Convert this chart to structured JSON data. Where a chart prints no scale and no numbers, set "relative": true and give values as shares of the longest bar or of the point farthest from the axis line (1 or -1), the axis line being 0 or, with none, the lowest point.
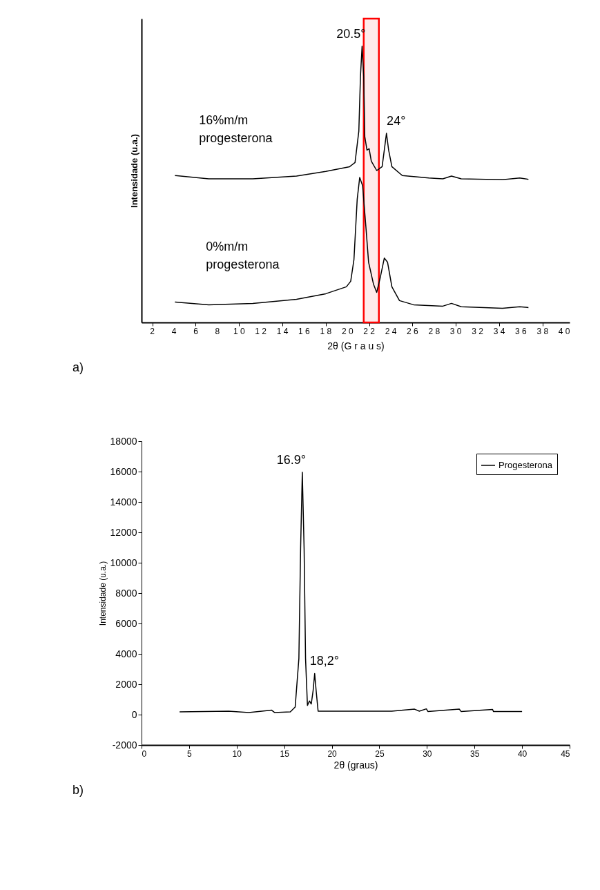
{
  "chart_data": [
    {
      "type": "line",
      "relative": true,
      "xlabel": "2θ (G r a u s)",
      "ylabel": "Intensidade (u.a.)",
      "xlim": [
        1,
        40.5
      ],
      "xticks": [
        2,
        4,
        6,
        8,
        {
          "value": 10,
          "label": "1 0"
        },
        {
          "value": 12,
          "label": "1 2"
        },
        {
          "value": 14,
          "label": "1 4"
        },
        {
          "value": 16,
          "label": "1 6"
        },
        {
          "value": 18,
          "label": "1 8"
        },
        {
          "value": 20,
          "label": "2 0"
        },
        {
          "value": 22,
          "label": "2 2"
        },
        {
          "value": 24,
          "label": "2 4"
        },
        {
          "value": 26,
          "label": "2 6"
        },
        {
          "value": 28,
          "label": "2 8"
        },
        {
          "value": 30,
          "label": "3 0"
        },
        {
          "value": 32,
          "label": "3 2"
        },
        {
          "value": 34,
          "label": "3 4"
        },
        {
          "value": 36,
          "label": "3 6"
        },
        {
          "value": 38,
          "label": "3 8"
        },
        {
          "value": 40,
          "label": "4 0"
        }
      ],
      "tick_labels": "x",
      "grid": false,
      "legend": false,
      "marker": "none",
      "line_style": "solid",
      "series": [
        {
          "name": "16%m/m progesterona",
          "color": "#000000",
          "x": [
            4.08,
            7.2,
            11.26,
            15.3,
            18.0,
            20.2,
            20.7,
            21.05,
            21.2,
            21.35,
            21.5,
            21.6,
            21.8,
            22.0,
            22.2,
            22.7,
            23.2,
            23.4,
            23.6,
            23.8,
            24.1,
            25.06,
            27.5,
            28.8,
            29.6,
            30.5,
            34.3,
            35.9,
            36.7
          ],
          "values": [
            0.532,
            0.52,
            0.52,
            0.53,
            0.547,
            0.564,
            0.579,
            0.693,
            0.891,
            1.0,
            0.891,
            0.673,
            0.624,
            0.629,
            0.584,
            0.55,
            0.564,
            0.624,
            0.685,
            0.624,
            0.564,
            0.532,
            0.523,
            0.52,
            0.53,
            0.52,
            0.517,
            0.523,
            0.518
          ]
        },
        {
          "name": "0%m/m progesterona",
          "color": "#000000",
          "x": [
            4.08,
            7.2,
            11.26,
            15.3,
            18.0,
            19.9,
            20.3,
            20.6,
            20.9,
            21.13,
            21.4,
            21.7,
            21.95,
            22.4,
            22.7,
            23.0,
            23.4,
            23.7,
            24.1,
            24.8,
            26.1,
            28.8,
            29.6,
            30.5,
            34.3,
            35.9,
            36.7
          ],
          "values": [
            0.074,
            0.064,
            0.069,
            0.084,
            0.104,
            0.129,
            0.149,
            0.228,
            0.446,
            0.525,
            0.495,
            0.347,
            0.218,
            0.139,
            0.109,
            0.158,
            0.233,
            0.218,
            0.129,
            0.079,
            0.064,
            0.059,
            0.069,
            0.057,
            0.051,
            0.057,
            0.054
          ]
        }
      ],
      "bands": [
        {
          "axis": "x",
          "from": 21.5,
          "to": 22.9,
          "color": "#ff0000"
        }
      ],
      "annotations": [
        {
          "text": "20.5°",
          "x": 21.35,
          "y": 1.0
        },
        {
          "text": "24°",
          "x": 23.6,
          "y": 0.685
        },
        "a)"
      ]
    },
    {
      "type": "line",
      "xlabel": "2θ (graus)",
      "ylabel": "Intensidade (u.a.)",
      "xlim": [
        0,
        45
      ],
      "xticks": [
        0,
        5,
        10,
        15,
        20,
        25,
        30,
        35,
        40,
        45
      ],
      "ylim": [
        -2000,
        18000
      ],
      "yticks": [
        -2000,
        0,
        2000,
        4000,
        6000,
        8000,
        10000,
        12000,
        14000,
        16000,
        18000
      ],
      "grid": false,
      "legend": "top right",
      "marker": "none",
      "line_style": "solid",
      "series": [
        {
          "name": "Progesterona",
          "color": "#000000",
          "x": [
            4.0,
            9.16,
            11.27,
            13.68,
            13.98,
            15.64,
            16.15,
            16.54,
            16.72,
            16.9,
            17.09,
            17.24,
            17.44,
            17.65,
            17.84,
            18.04,
            18.2,
            18.35,
            18.56,
            20.3,
            26.3,
            28.7,
            29.2,
            29.94,
            30.1,
            33.4,
            33.6,
            36.9,
            37.0,
            40.0
          ],
          "values": [
            180,
            230,
            140,
            290,
            140,
            180,
            500,
            3700,
            10900,
            15950,
            10900,
            3700,
            600,
            900,
            700,
            1600,
            2700,
            1600,
            230,
            230,
            230,
            360,
            230,
            380,
            210,
            360,
            200,
            340,
            200,
            200
          ]
        }
      ],
      "annotations": [
        {
          "text": "16.9°",
          "x": 16.9,
          "y": 15950
        },
        {
          "text": "18,2°",
          "x": 18.2,
          "y": 2730
        },
        "b)"
      ]
    }
  ]
}
